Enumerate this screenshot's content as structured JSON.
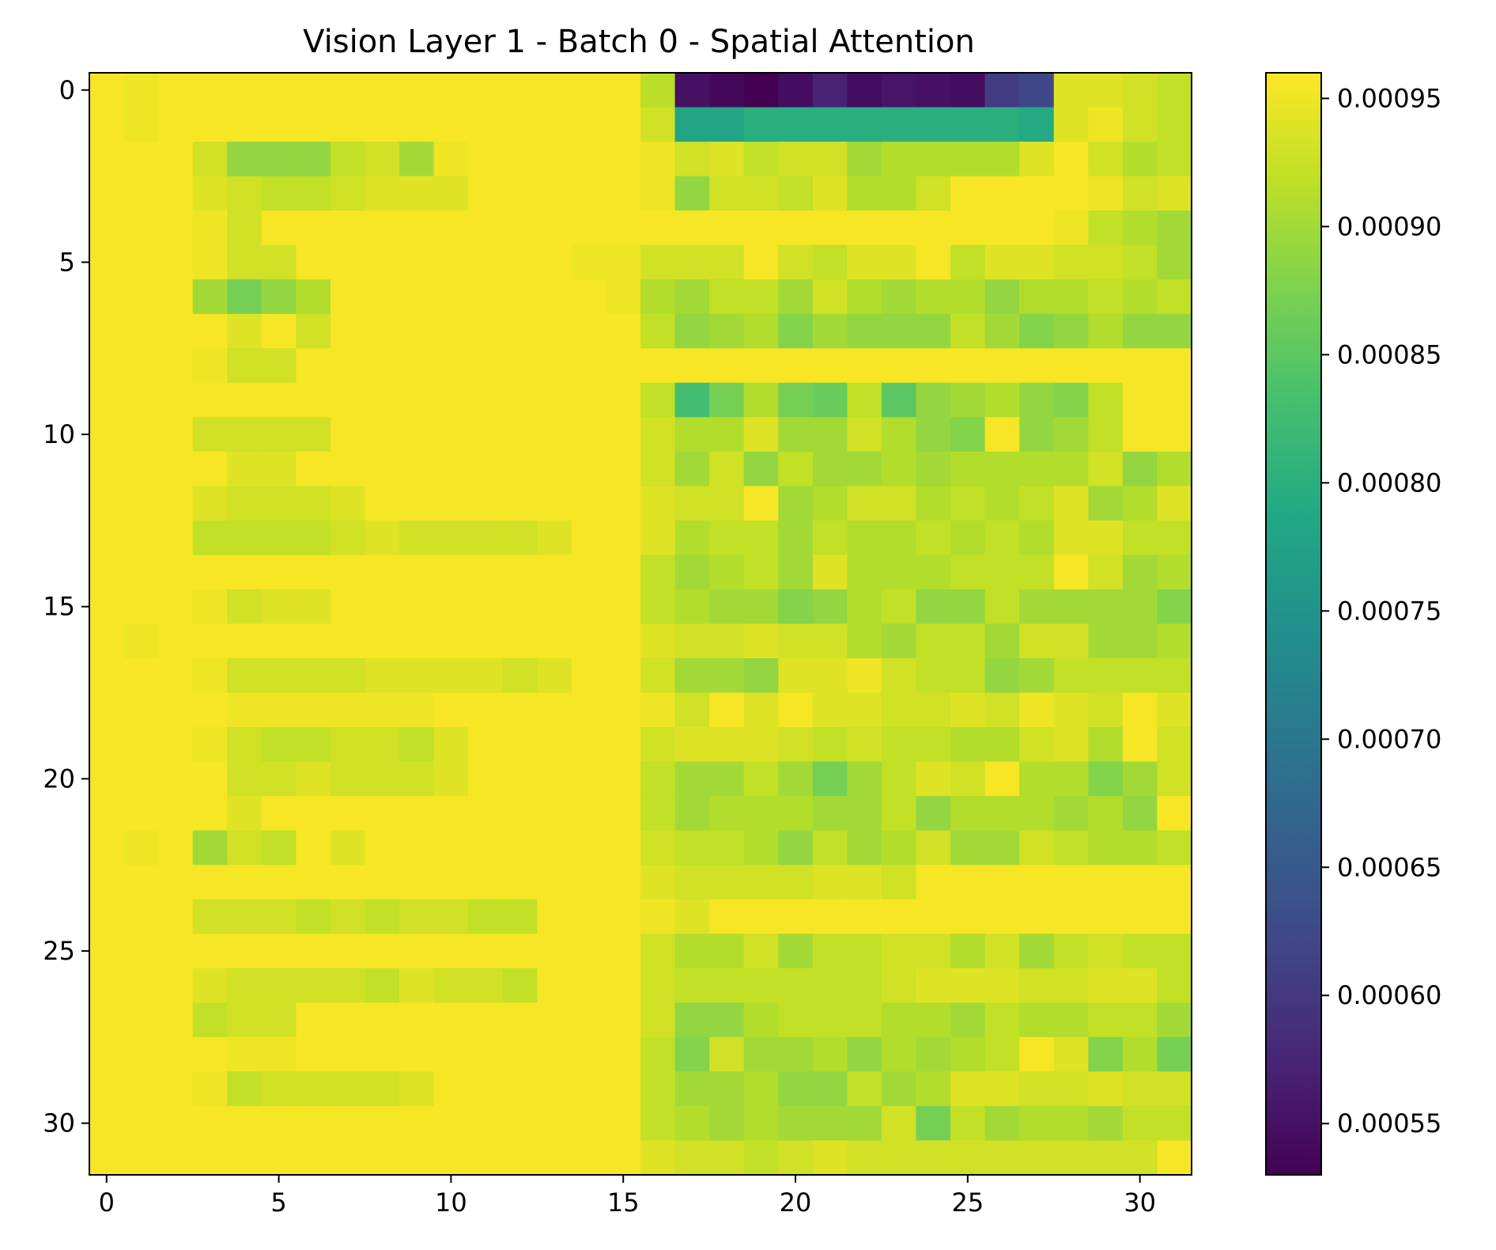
{
  "chart_data": {
    "type": "heatmap",
    "title": "Vision Layer 1 - Batch 0 - Spatial Attention",
    "xlabel": "",
    "ylabel": "",
    "rows": 32,
    "cols": 32,
    "x_ticks": [
      0,
      5,
      10,
      15,
      20,
      25,
      30
    ],
    "y_ticks": [
      0,
      5,
      10,
      15,
      20,
      25,
      30
    ],
    "colormap": "viridis",
    "colorbar": {
      "min": 0.00053,
      "max": 0.00096,
      "ticks": [
        0.00055,
        0.0006,
        0.00065,
        0.0007,
        0.00075,
        0.0008,
        0.00085,
        0.0009,
        0.00095
      ],
      "tick_labels": [
        "0.00055",
        "0.00060",
        "0.00065",
        "0.00070",
        "0.00075",
        "0.00080",
        "0.00085",
        "0.00090",
        "0.00095"
      ]
    },
    "values": [
      [
        0.000955,
        0.00095,
        0.000955,
        0.000955,
        0.000955,
        0.000955,
        0.000955,
        0.000955,
        0.000955,
        0.000955,
        0.000955,
        0.000955,
        0.000955,
        0.000955,
        0.000955,
        0.000955,
        0.000915,
        0.00055,
        0.00054,
        0.00053,
        0.000545,
        0.00057,
        0.000545,
        0.000555,
        0.00055,
        0.000545,
        0.000605,
        0.00062,
        0.00094,
        0.00094,
        0.00093,
        0.00092
      ],
      [
        0.000955,
        0.00095,
        0.000955,
        0.000955,
        0.000955,
        0.000955,
        0.000955,
        0.000955,
        0.000955,
        0.000955,
        0.000955,
        0.000955,
        0.000955,
        0.000955,
        0.000955,
        0.000955,
        0.00093,
        0.00078,
        0.00078,
        0.0008,
        0.0008,
        0.0008,
        0.0008,
        0.0008,
        0.0008,
        0.0008,
        0.0008,
        0.00079,
        0.00094,
        0.00095,
        0.00093,
        0.00092
      ],
      [
        0.000955,
        0.000955,
        0.000955,
        0.00093,
        0.00089,
        0.00089,
        0.00089,
        0.00092,
        0.00093,
        0.0009,
        0.00095,
        0.000955,
        0.000955,
        0.000955,
        0.000955,
        0.000955,
        0.00095,
        0.00093,
        0.00094,
        0.00092,
        0.00093,
        0.00093,
        0.0009,
        0.00091,
        0.00091,
        0.00091,
        0.00091,
        0.00094,
        0.000955,
        0.00093,
        0.00091,
        0.00092
      ],
      [
        0.000955,
        0.000955,
        0.000955,
        0.00094,
        0.00093,
        0.00092,
        0.00092,
        0.00093,
        0.00094,
        0.00094,
        0.00094,
        0.000955,
        0.000955,
        0.000955,
        0.000955,
        0.000955,
        0.00095,
        0.00089,
        0.00093,
        0.00093,
        0.00092,
        0.00094,
        0.00091,
        0.00091,
        0.00093,
        0.000955,
        0.000955,
        0.000955,
        0.000955,
        0.00095,
        0.00093,
        0.00094
      ],
      [
        0.000955,
        0.000955,
        0.000955,
        0.00095,
        0.00093,
        0.000955,
        0.000955,
        0.000955,
        0.000955,
        0.000955,
        0.000955,
        0.000955,
        0.000955,
        0.000955,
        0.000955,
        0.000955,
        0.000955,
        0.000955,
        0.000955,
        0.000955,
        0.000955,
        0.000955,
        0.000955,
        0.000955,
        0.000955,
        0.000955,
        0.000955,
        0.000955,
        0.00095,
        0.00092,
        0.00091,
        0.0009
      ],
      [
        0.000955,
        0.000955,
        0.000955,
        0.00095,
        0.00093,
        0.00093,
        0.000955,
        0.000955,
        0.000955,
        0.000955,
        0.000955,
        0.000955,
        0.000955,
        0.000955,
        0.00095,
        0.00095,
        0.00093,
        0.00093,
        0.00093,
        0.000955,
        0.00093,
        0.00092,
        0.00094,
        0.00094,
        0.000955,
        0.00092,
        0.00094,
        0.00094,
        0.00093,
        0.00093,
        0.00092,
        0.0009
      ],
      [
        0.000955,
        0.000955,
        0.000955,
        0.0009,
        0.00087,
        0.00089,
        0.00091,
        0.000955,
        0.000955,
        0.000955,
        0.000955,
        0.000955,
        0.000955,
        0.000955,
        0.000955,
        0.00095,
        0.00091,
        0.0009,
        0.00092,
        0.00092,
        0.0009,
        0.00093,
        0.00091,
        0.0009,
        0.00091,
        0.00091,
        0.00089,
        0.00091,
        0.00091,
        0.00092,
        0.00091,
        0.00092
      ],
      [
        0.000955,
        0.000955,
        0.000955,
        0.000955,
        0.00094,
        0.000955,
        0.00093,
        0.000955,
        0.000955,
        0.000955,
        0.000955,
        0.000955,
        0.000955,
        0.000955,
        0.000955,
        0.000955,
        0.00092,
        0.00089,
        0.0009,
        0.00091,
        0.00088,
        0.0009,
        0.00089,
        0.00089,
        0.00089,
        0.00092,
        0.0009,
        0.00088,
        0.00089,
        0.00091,
        0.00089,
        0.00089
      ],
      [
        0.000955,
        0.000955,
        0.000955,
        0.00095,
        0.00093,
        0.00093,
        0.000955,
        0.000955,
        0.000955,
        0.000955,
        0.000955,
        0.000955,
        0.000955,
        0.000955,
        0.000955,
        0.000955,
        0.000955,
        0.000955,
        0.000955,
        0.000955,
        0.000955,
        0.000955,
        0.000955,
        0.000955,
        0.000955,
        0.000955,
        0.000955,
        0.000955,
        0.000955,
        0.000955,
        0.000955,
        0.000955
      ],
      [
        0.000955,
        0.000955,
        0.000955,
        0.000955,
        0.000955,
        0.000955,
        0.000955,
        0.000955,
        0.000955,
        0.000955,
        0.000955,
        0.000955,
        0.000955,
        0.000955,
        0.000955,
        0.000955,
        0.00092,
        0.00083,
        0.00087,
        0.00091,
        0.00087,
        0.00086,
        0.00092,
        0.00085,
        0.00089,
        0.0009,
        0.00091,
        0.00089,
        0.00088,
        0.00092,
        0.000955,
        0.000955
      ],
      [
        0.000955,
        0.000955,
        0.000955,
        0.00093,
        0.00093,
        0.00093,
        0.00093,
        0.000955,
        0.000955,
        0.000955,
        0.000955,
        0.000955,
        0.000955,
        0.000955,
        0.000955,
        0.000955,
        0.00093,
        0.00091,
        0.00091,
        0.00094,
        0.0009,
        0.0009,
        0.00093,
        0.00091,
        0.00089,
        0.00088,
        0.000955,
        0.00089,
        0.0009,
        0.00092,
        0.000955,
        0.000955
      ],
      [
        0.000955,
        0.000955,
        0.000955,
        0.000955,
        0.00094,
        0.00094,
        0.000955,
        0.000955,
        0.000955,
        0.000955,
        0.000955,
        0.000955,
        0.000955,
        0.000955,
        0.000955,
        0.000955,
        0.00093,
        0.0009,
        0.00093,
        0.00089,
        0.00092,
        0.0009,
        0.0009,
        0.00091,
        0.0009,
        0.00091,
        0.00091,
        0.00091,
        0.00091,
        0.00093,
        0.00089,
        0.00091
      ],
      [
        0.000955,
        0.000955,
        0.000955,
        0.00094,
        0.00093,
        0.00093,
        0.00093,
        0.00094,
        0.000955,
        0.000955,
        0.000955,
        0.000955,
        0.000955,
        0.000955,
        0.000955,
        0.000955,
        0.00094,
        0.00093,
        0.00093,
        0.000955,
        0.0009,
        0.00091,
        0.00093,
        0.00093,
        0.00091,
        0.00092,
        0.00091,
        0.00092,
        0.00094,
        0.0009,
        0.00091,
        0.00094
      ],
      [
        0.000955,
        0.000955,
        0.000955,
        0.00092,
        0.00092,
        0.00092,
        0.00092,
        0.00093,
        0.00094,
        0.00093,
        0.00093,
        0.00093,
        0.00093,
        0.00094,
        0.000955,
        0.000955,
        0.00094,
        0.00091,
        0.00092,
        0.00092,
        0.0009,
        0.00092,
        0.00091,
        0.00091,
        0.00092,
        0.00091,
        0.00092,
        0.00091,
        0.00094,
        0.00094,
        0.00092,
        0.00092
      ],
      [
        0.000955,
        0.000955,
        0.000955,
        0.000955,
        0.000955,
        0.000955,
        0.000955,
        0.000955,
        0.000955,
        0.000955,
        0.000955,
        0.000955,
        0.000955,
        0.000955,
        0.000955,
        0.000955,
        0.00092,
        0.0009,
        0.00091,
        0.00092,
        0.0009,
        0.00094,
        0.00091,
        0.00091,
        0.00091,
        0.00092,
        0.00092,
        0.00092,
        0.000955,
        0.00093,
        0.0009,
        0.00091
      ],
      [
        0.000955,
        0.000955,
        0.000955,
        0.00095,
        0.00093,
        0.00094,
        0.00094,
        0.000955,
        0.000955,
        0.000955,
        0.000955,
        0.000955,
        0.000955,
        0.000955,
        0.000955,
        0.000955,
        0.00092,
        0.00091,
        0.0009,
        0.0009,
        0.00088,
        0.00089,
        0.00091,
        0.00092,
        0.00089,
        0.00089,
        0.00092,
        0.0009,
        0.0009,
        0.0009,
        0.0009,
        0.00088
      ],
      [
        0.000955,
        0.00095,
        0.000955,
        0.000955,
        0.000955,
        0.000955,
        0.000955,
        0.000955,
        0.000955,
        0.000955,
        0.000955,
        0.000955,
        0.000955,
        0.000955,
        0.000955,
        0.000955,
        0.00094,
        0.00093,
        0.00093,
        0.00094,
        0.00093,
        0.00093,
        0.00091,
        0.0009,
        0.00092,
        0.00092,
        0.0009,
        0.00093,
        0.00093,
        0.0009,
        0.0009,
        0.00091
      ],
      [
        0.000955,
        0.000955,
        0.000955,
        0.00095,
        0.00093,
        0.00093,
        0.00093,
        0.00093,
        0.00094,
        0.00094,
        0.00094,
        0.00094,
        0.00093,
        0.00094,
        0.000955,
        0.000955,
        0.00093,
        0.0009,
        0.0009,
        0.00089,
        0.00094,
        0.00094,
        0.00095,
        0.00093,
        0.00092,
        0.00092,
        0.00089,
        0.0009,
        0.00092,
        0.00092,
        0.00092,
        0.00092
      ],
      [
        0.000955,
        0.000955,
        0.000955,
        0.000955,
        0.00095,
        0.00095,
        0.00095,
        0.00095,
        0.00095,
        0.00095,
        0.000955,
        0.000955,
        0.000955,
        0.000955,
        0.000955,
        0.000955,
        0.00095,
        0.00093,
        0.000955,
        0.00094,
        0.000955,
        0.00094,
        0.00094,
        0.00093,
        0.00093,
        0.00094,
        0.00093,
        0.00095,
        0.00094,
        0.00093,
        0.000955,
        0.00094
      ],
      [
        0.000955,
        0.000955,
        0.000955,
        0.00095,
        0.00093,
        0.00092,
        0.00092,
        0.00093,
        0.00093,
        0.00092,
        0.00094,
        0.000955,
        0.000955,
        0.000955,
        0.000955,
        0.000955,
        0.00093,
        0.00094,
        0.00094,
        0.00094,
        0.00093,
        0.00092,
        0.00093,
        0.00092,
        0.00092,
        0.00091,
        0.00091,
        0.00093,
        0.00094,
        0.00091,
        0.000955,
        0.00093
      ],
      [
        0.000955,
        0.000955,
        0.000955,
        0.000955,
        0.00093,
        0.00093,
        0.00094,
        0.00093,
        0.00093,
        0.00093,
        0.00094,
        0.000955,
        0.000955,
        0.000955,
        0.000955,
        0.000955,
        0.00092,
        0.0009,
        0.0009,
        0.00092,
        0.0009,
        0.00087,
        0.0009,
        0.00092,
        0.00094,
        0.00093,
        0.000955,
        0.00091,
        0.00091,
        0.00088,
        0.0009,
        0.00093
      ],
      [
        0.000955,
        0.000955,
        0.000955,
        0.000955,
        0.00094,
        0.000955,
        0.000955,
        0.000955,
        0.000955,
        0.000955,
        0.000955,
        0.000955,
        0.000955,
        0.000955,
        0.000955,
        0.000955,
        0.00092,
        0.0009,
        0.00091,
        0.00091,
        0.00091,
        0.0009,
        0.0009,
        0.00092,
        0.00089,
        0.00091,
        0.00091,
        0.00091,
        0.0009,
        0.00091,
        0.00089,
        0.000955
      ],
      [
        0.000955,
        0.00095,
        0.000955,
        0.0009,
        0.00093,
        0.00092,
        0.000955,
        0.00094,
        0.000955,
        0.000955,
        0.000955,
        0.000955,
        0.000955,
        0.000955,
        0.000955,
        0.000955,
        0.00093,
        0.00092,
        0.00092,
        0.00091,
        0.00089,
        0.00092,
        0.0009,
        0.00091,
        0.00093,
        0.0009,
        0.0009,
        0.00093,
        0.00092,
        0.00091,
        0.00091,
        0.00092
      ],
      [
        0.000955,
        0.000955,
        0.000955,
        0.000955,
        0.000955,
        0.000955,
        0.000955,
        0.000955,
        0.000955,
        0.000955,
        0.000955,
        0.000955,
        0.000955,
        0.000955,
        0.000955,
        0.000955,
        0.00094,
        0.00093,
        0.00093,
        0.00093,
        0.00093,
        0.00094,
        0.00094,
        0.00093,
        0.000955,
        0.000955,
        0.000955,
        0.000955,
        0.000955,
        0.000955,
        0.000955,
        0.000955
      ],
      [
        0.000955,
        0.000955,
        0.000955,
        0.00093,
        0.00093,
        0.00093,
        0.00092,
        0.00093,
        0.00092,
        0.00093,
        0.00093,
        0.00092,
        0.00092,
        0.000955,
        0.000955,
        0.000955,
        0.00095,
        0.00094,
        0.000955,
        0.000955,
        0.000955,
        0.000955,
        0.000955,
        0.000955,
        0.000955,
        0.000955,
        0.000955,
        0.000955,
        0.000955,
        0.000955,
        0.000955,
        0.000955
      ],
      [
        0.000955,
        0.000955,
        0.000955,
        0.000955,
        0.000955,
        0.000955,
        0.000955,
        0.000955,
        0.000955,
        0.000955,
        0.000955,
        0.000955,
        0.000955,
        0.000955,
        0.000955,
        0.000955,
        0.00093,
        0.00091,
        0.00091,
        0.00093,
        0.0009,
        0.00092,
        0.00092,
        0.00093,
        0.00093,
        0.00091,
        0.00093,
        0.0009,
        0.00092,
        0.00093,
        0.00092,
        0.00092
      ],
      [
        0.000955,
        0.000955,
        0.000955,
        0.00094,
        0.00093,
        0.00093,
        0.00093,
        0.00093,
        0.00092,
        0.00094,
        0.00093,
        0.00093,
        0.00092,
        0.000955,
        0.000955,
        0.000955,
        0.00093,
        0.00092,
        0.00092,
        0.00092,
        0.00092,
        0.00092,
        0.00092,
        0.00093,
        0.00094,
        0.00094,
        0.00094,
        0.00093,
        0.00093,
        0.00094,
        0.00094,
        0.00092
      ],
      [
        0.000955,
        0.000955,
        0.000955,
        0.00092,
        0.00093,
        0.00093,
        0.000955,
        0.000955,
        0.000955,
        0.000955,
        0.000955,
        0.000955,
        0.000955,
        0.000955,
        0.000955,
        0.000955,
        0.00093,
        0.00089,
        0.00089,
        0.00091,
        0.00092,
        0.00092,
        0.00092,
        0.00091,
        0.00091,
        0.0009,
        0.00092,
        0.00091,
        0.00091,
        0.00092,
        0.00092,
        0.0009
      ],
      [
        0.000955,
        0.000955,
        0.000955,
        0.000955,
        0.00095,
        0.00095,
        0.000955,
        0.000955,
        0.000955,
        0.000955,
        0.000955,
        0.000955,
        0.000955,
        0.000955,
        0.000955,
        0.000955,
        0.00092,
        0.00088,
        0.00093,
        0.0009,
        0.0009,
        0.00091,
        0.00089,
        0.00091,
        0.0009,
        0.00091,
        0.00092,
        0.000955,
        0.00094,
        0.00088,
        0.00091,
        0.00087
      ],
      [
        0.000955,
        0.000955,
        0.000955,
        0.00095,
        0.00092,
        0.00093,
        0.00093,
        0.00093,
        0.00093,
        0.00094,
        0.000955,
        0.000955,
        0.000955,
        0.000955,
        0.000955,
        0.000955,
        0.00092,
        0.0009,
        0.0009,
        0.00091,
        0.00089,
        0.00089,
        0.00092,
        0.0009,
        0.00091,
        0.00094,
        0.00094,
        0.00093,
        0.00093,
        0.00094,
        0.00093,
        0.00093
      ],
      [
        0.000955,
        0.000955,
        0.000955,
        0.000955,
        0.000955,
        0.000955,
        0.000955,
        0.000955,
        0.000955,
        0.000955,
        0.000955,
        0.000955,
        0.000955,
        0.000955,
        0.000955,
        0.000955,
        0.00092,
        0.00091,
        0.0009,
        0.00091,
        0.0009,
        0.0009,
        0.0009,
        0.00093,
        0.00087,
        0.00092,
        0.0009,
        0.00091,
        0.00091,
        0.0009,
        0.00092,
        0.00092
      ],
      [
        0.000955,
        0.000955,
        0.000955,
        0.000955,
        0.000955,
        0.000955,
        0.000955,
        0.000955,
        0.000955,
        0.000955,
        0.000955,
        0.000955,
        0.000955,
        0.000955,
        0.000955,
        0.000955,
        0.00094,
        0.00093,
        0.00093,
        0.00092,
        0.00093,
        0.00094,
        0.00093,
        0.00093,
        0.00093,
        0.00093,
        0.00093,
        0.00093,
        0.00093,
        0.00093,
        0.00093,
        0.000955
      ]
    ]
  }
}
